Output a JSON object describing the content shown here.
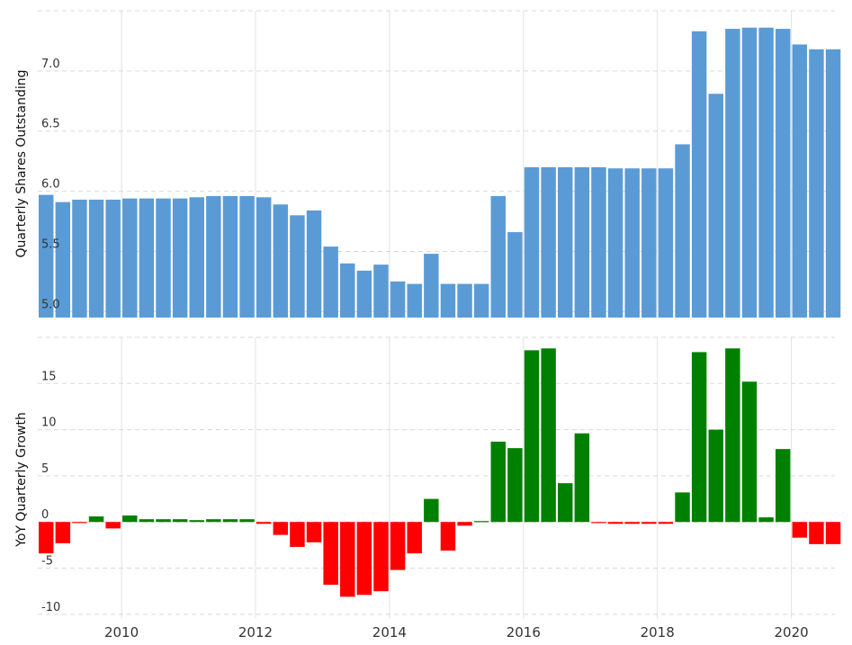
{
  "chart_data": [
    {
      "type": "bar",
      "ylabel": "Quarterly Shares Outstanding",
      "ylim": [
        4.95,
        7.5
      ],
      "yticks": [
        "5.0",
        "5.5",
        "6.0",
        "6.5",
        "7.0"
      ],
      "grid": true,
      "color": "#5b9bd5",
      "values": [
        5.97,
        5.91,
        5.93,
        5.93,
        5.93,
        5.94,
        5.94,
        5.94,
        5.94,
        5.95,
        5.96,
        5.96,
        5.96,
        5.95,
        5.89,
        5.8,
        5.84,
        5.54,
        5.4,
        5.34,
        5.39,
        5.25,
        5.23,
        5.48,
        5.23,
        5.23,
        5.23,
        5.96,
        5.66,
        6.2,
        6.2,
        6.2,
        6.2,
        6.2,
        6.19,
        6.19,
        6.19,
        6.19,
        6.39,
        7.33,
        6.81,
        7.35,
        7.36,
        7.36,
        7.35,
        7.22,
        7.18,
        7.18
      ]
    },
    {
      "type": "bar",
      "ylabel": "YoY Quarterly Growth",
      "ylim": [
        -10.5,
        20
      ],
      "yticks": [
        "-10",
        "-5",
        "0",
        "5",
        "10",
        "15"
      ],
      "grid": true,
      "positive_color": "#008000",
      "negative_color": "#ff0000",
      "values": [
        -3.4,
        -2.3,
        -0.1,
        0.6,
        -0.7,
        0.7,
        0.3,
        0.3,
        0.3,
        0.2,
        0.3,
        0.3,
        0.3,
        -0.2,
        -1.4,
        -2.7,
        -2.2,
        -6.8,
        -8.1,
        -7.9,
        -7.5,
        -5.2,
        -3.4,
        2.5,
        -3.1,
        -0.4,
        0.1,
        8.7,
        8.0,
        18.6,
        18.8,
        4.2,
        9.6,
        -0.1,
        -0.2,
        -0.2,
        -0.2,
        -0.2,
        3.2,
        18.4,
        10.0,
        18.8,
        15.2,
        0.5,
        7.9,
        -1.7,
        -2.4,
        -2.4
      ]
    }
  ],
  "x_axis": {
    "labels": [
      "2010",
      "2012",
      "2014",
      "2016",
      "2018",
      "2020"
    ],
    "start": 2008.75,
    "end": 2020.65,
    "bar_period": 0.25
  }
}
